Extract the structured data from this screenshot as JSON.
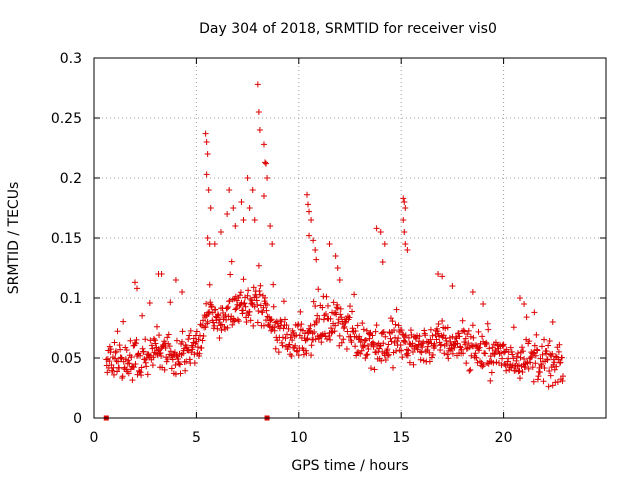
{
  "chart_data": {
    "type": "scatter",
    "title": "Day 304 of 2018, SRMTID for receiver vis0",
    "xlabel": "GPS time / hours",
    "ylabel": "SRMTID / TECUs",
    "xlim": [
      0,
      25
    ],
    "ylim": [
      0,
      0.3
    ],
    "x_ticks": [
      0,
      5,
      10,
      15,
      20
    ],
    "x_tick_labels": [
      "0",
      "5",
      "10",
      "15",
      "20"
    ],
    "y_ticks": [
      0,
      0.05,
      0.1,
      0.15,
      0.2,
      0.25,
      0.3
    ],
    "y_tick_labels": [
      "0",
      "0.05",
      "0.1",
      "0.15",
      "0.2",
      "0.25",
      "0.3"
    ],
    "grid": true,
    "marker": "plus",
    "marker_color": "#dd0000",
    "series": [
      {
        "name": "SRMTID",
        "x_range": [
          0.6,
          22.9
        ],
        "sample_step": 0.025,
        "baseline": [
          [
            0.6,
            0.045
          ],
          [
            2.0,
            0.048
          ],
          [
            3.0,
            0.055
          ],
          [
            4.0,
            0.052
          ],
          [
            5.0,
            0.06
          ],
          [
            5.5,
            0.085
          ],
          [
            6.0,
            0.08
          ],
          [
            7.0,
            0.09
          ],
          [
            8.0,
            0.095
          ],
          [
            9.0,
            0.07
          ],
          [
            10.0,
            0.065
          ],
          [
            11.0,
            0.075
          ],
          [
            12.0,
            0.08
          ],
          [
            13.0,
            0.065
          ],
          [
            14.0,
            0.06
          ],
          [
            15.0,
            0.065
          ],
          [
            16.0,
            0.06
          ],
          [
            17.0,
            0.065
          ],
          [
            18.0,
            0.06
          ],
          [
            19.0,
            0.055
          ],
          [
            20.0,
            0.05
          ],
          [
            21.0,
            0.05
          ],
          [
            22.0,
            0.045
          ],
          [
            22.9,
            0.042
          ]
        ],
        "spread": 0.025,
        "peaks": [
          [
            5.45,
            0.237
          ],
          [
            5.5,
            0.23
          ],
          [
            5.55,
            0.22
          ],
          [
            5.5,
            0.203
          ],
          [
            5.6,
            0.19
          ],
          [
            5.7,
            0.175
          ],
          [
            5.55,
            0.15
          ],
          [
            5.65,
            0.145
          ],
          [
            5.9,
            0.145
          ],
          [
            6.2,
            0.155
          ],
          [
            6.5,
            0.17
          ],
          [
            6.6,
            0.19
          ],
          [
            6.8,
            0.175
          ],
          [
            6.9,
            0.16
          ],
          [
            7.2,
            0.18
          ],
          [
            7.3,
            0.165
          ],
          [
            7.5,
            0.2
          ],
          [
            7.6,
            0.175
          ],
          [
            7.75,
            0.19
          ],
          [
            7.85,
            0.165
          ],
          [
            8.0,
            0.278
          ],
          [
            8.05,
            0.255
          ],
          [
            8.1,
            0.24
          ],
          [
            8.3,
            0.228
          ],
          [
            8.35,
            0.213
          ],
          [
            8.4,
            0.212
          ],
          [
            8.45,
            0.2
          ],
          [
            8.3,
            0.185
          ],
          [
            8.6,
            0.16
          ],
          [
            8.7,
            0.145
          ],
          [
            3.15,
            0.12
          ],
          [
            3.3,
            0.12
          ],
          [
            2.0,
            0.113
          ],
          [
            2.1,
            0.108
          ],
          [
            4.0,
            0.115
          ],
          [
            4.3,
            0.105
          ],
          [
            10.4,
            0.186
          ],
          [
            10.45,
            0.178
          ],
          [
            10.5,
            0.172
          ],
          [
            10.6,
            0.165
          ],
          [
            10.5,
            0.152
          ],
          [
            10.7,
            0.148
          ],
          [
            10.8,
            0.14
          ],
          [
            10.85,
            0.132
          ],
          [
            11.5,
            0.145
          ],
          [
            11.8,
            0.135
          ],
          [
            11.9,
            0.125
          ],
          [
            12.0,
            0.115
          ],
          [
            13.8,
            0.158
          ],
          [
            14.0,
            0.155
          ],
          [
            14.2,
            0.145
          ],
          [
            14.1,
            0.13
          ],
          [
            15.1,
            0.183
          ],
          [
            15.15,
            0.18
          ],
          [
            15.2,
            0.175
          ],
          [
            15.1,
            0.165
          ],
          [
            15.15,
            0.155
          ],
          [
            15.2,
            0.145
          ],
          [
            15.3,
            0.14
          ],
          [
            16.8,
            0.12
          ],
          [
            17.0,
            0.118
          ],
          [
            17.5,
            0.11
          ],
          [
            18.5,
            0.105
          ],
          [
            19.0,
            0.095
          ],
          [
            20.8,
            0.1
          ],
          [
            21.0,
            0.095
          ],
          [
            21.5,
            0.088
          ],
          [
            22.4,
            0.08
          ]
        ],
        "zero_points": [
          [
            0.6,
            0.0
          ],
          [
            8.45,
            0.0
          ]
        ]
      }
    ]
  }
}
